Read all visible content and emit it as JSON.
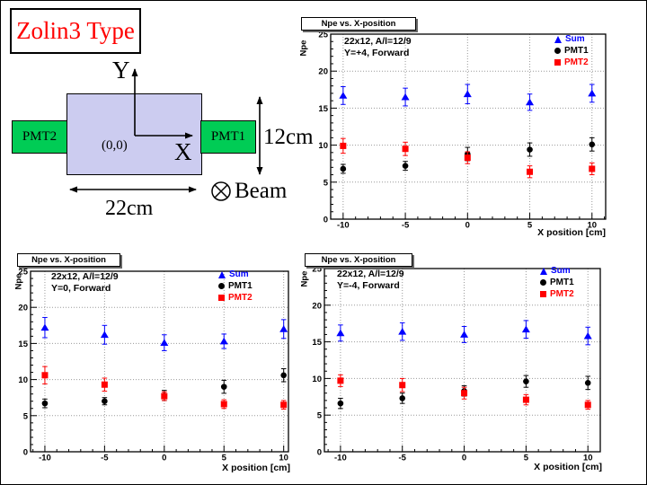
{
  "slide": {
    "title": "Zolin3 Type",
    "title_color": "#ff0000",
    "background": "#ffffff"
  },
  "diagram": {
    "pmt_left_label": "PMT2",
    "pmt_right_label": "PMT1",
    "y_axis_label": "Y",
    "x_axis_label": "X",
    "origin_label": "(0,0)",
    "width_label": "22cm",
    "height_label": "12cm",
    "beam_label": "Beam",
    "scintillator_color": "#ccccf0",
    "pmt_color": "#00cc55"
  },
  "chart_data": [
    {
      "id": "y-plus4",
      "type": "scatter",
      "title": "Npe vs. X-position",
      "annotation": [
        "22x12, A/l=12/9",
        "Y=+4, Forward"
      ],
      "xlabel": "X position [cm]",
      "ylabel": "Npe",
      "x": [
        -10,
        -5,
        0,
        5,
        10
      ],
      "x_ticks": [
        -10,
        -5,
        0,
        5,
        10
      ],
      "y_ticks": [
        0,
        5,
        10,
        15,
        20,
        25
      ],
      "xlim": [
        -11.0,
        11.1
      ],
      "ylim": [
        0,
        25
      ],
      "grid": true,
      "legend_position": "top-right",
      "series": [
        {
          "name": "Sum",
          "marker": "triangle",
          "color": "#0000ff",
          "values": [
            16.7,
            16.5,
            16.9,
            15.8,
            17.0
          ],
          "errors": [
            1.2,
            1.2,
            1.3,
            1.1,
            1.2
          ]
        },
        {
          "name": "PMT1",
          "marker": "circle",
          "color": "#000000",
          "values": [
            6.8,
            7.2,
            8.8,
            9.4,
            10.1
          ],
          "errors": [
            0.6,
            0.6,
            0.9,
            0.9,
            0.9
          ]
        },
        {
          "name": "PMT2",
          "marker": "square",
          "color": "#ff0000",
          "values": [
            9.9,
            9.5,
            8.3,
            6.4,
            6.8
          ],
          "errors": [
            1.0,
            0.9,
            0.8,
            0.8,
            0.8
          ]
        }
      ]
    },
    {
      "id": "y-zero",
      "type": "scatter",
      "title": "Npe vs. X-position",
      "annotation": [
        "22x12, A/l=12/9",
        "Y=0, Forward"
      ],
      "xlabel": "X position [cm]",
      "ylabel": "Npe",
      "x": [
        -10,
        -5,
        0,
        5,
        10
      ],
      "x_ticks": [
        -10,
        -5,
        0,
        5,
        10
      ],
      "y_ticks": [
        0,
        5,
        10,
        15,
        20,
        25
      ],
      "xlim": [
        -11.2,
        10.4
      ],
      "ylim": [
        0,
        25
      ],
      "grid": true,
      "legend_position": "top-right",
      "series": [
        {
          "name": "Sum",
          "marker": "triangle",
          "color": "#0000ff",
          "values": [
            17.2,
            16.2,
            15.1,
            15.3,
            17.0
          ],
          "errors": [
            1.4,
            1.3,
            1.1,
            1.0,
            1.3
          ]
        },
        {
          "name": "PMT1",
          "marker": "circle",
          "color": "#000000",
          "values": [
            6.7,
            7.0,
            7.8,
            9.0,
            10.6
          ],
          "errors": [
            0.6,
            0.5,
            0.7,
            0.9,
            0.9
          ]
        },
        {
          "name": "PMT2",
          "marker": "square",
          "color": "#ff0000",
          "values": [
            10.6,
            9.3,
            7.7,
            6.6,
            6.5
          ],
          "errors": [
            1.2,
            0.9,
            0.6,
            0.6,
            0.6
          ]
        }
      ]
    },
    {
      "id": "y-minus4",
      "type": "scatter",
      "title": "Npe vs. X-position",
      "annotation": [
        "22x12, A/l=12/9",
        "Y=-4, Forward"
      ],
      "xlabel": "X position [cm]",
      "ylabel": "Npe",
      "x": [
        -10,
        -5,
        0,
        5,
        10
      ],
      "x_ticks": [
        -10,
        -5,
        0,
        5,
        10
      ],
      "y_ticks": [
        0,
        5,
        10,
        15,
        20,
        25
      ],
      "xlim": [
        -11.3,
        11.0
      ],
      "ylim": [
        0,
        25
      ],
      "grid": true,
      "legend_position": "top-right",
      "series": [
        {
          "name": "Sum",
          "marker": "triangle",
          "color": "#0000ff",
          "values": [
            16.2,
            16.4,
            16.0,
            16.7,
            15.8
          ],
          "errors": [
            1.1,
            1.2,
            1.1,
            1.2,
            1.2
          ]
        },
        {
          "name": "PMT1",
          "marker": "circle",
          "color": "#000000",
          "values": [
            6.6,
            7.3,
            8.3,
            9.6,
            9.4
          ],
          "errors": [
            0.7,
            0.7,
            0.7,
            0.8,
            0.9
          ]
        },
        {
          "name": "PMT2",
          "marker": "square",
          "color": "#ff0000",
          "values": [
            9.7,
            9.1,
            8.0,
            7.1,
            6.4
          ],
          "errors": [
            0.8,
            0.9,
            0.8,
            0.7,
            0.6
          ]
        }
      ]
    }
  ]
}
